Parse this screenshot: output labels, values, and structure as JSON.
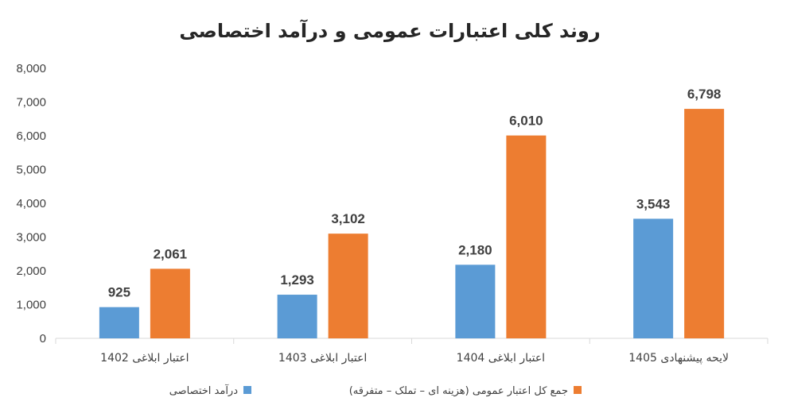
{
  "chart_data": {
    "type": "bar",
    "title": "روند کلی اعتبارات عمومی و درآمد اختصاصی",
    "categories": [
      "اعتبار ابلاغی 1402",
      "اعتبار ابلاغی 1403",
      "اعتبار ابلاغی 1404",
      "لایحه پیشنهادی 1405"
    ],
    "series": [
      {
        "name": "درآمد اختصاصی",
        "color": "#5b9bd5",
        "values": [
          925,
          1293,
          2180,
          3543
        ],
        "labels": [
          "925",
          "1,293",
          "2,180",
          "3,543"
        ]
      },
      {
        "name": "جمع کل اعتبار عمومی (هزینه ای – تملک – متفرقه)",
        "color": "#ed7d31",
        "values": [
          2061,
          3102,
          6010,
          6798
        ],
        "labels": [
          "2,061",
          "3,102",
          "6,010",
          "6,798"
        ]
      }
    ],
    "ylim": [
      0,
      8000
    ],
    "yticks": [
      0,
      1000,
      2000,
      3000,
      4000,
      5000,
      6000,
      7000,
      8000
    ],
    "ytick_labels": [
      "0",
      "1,000",
      "2,000",
      "3,000",
      "4,000",
      "5,000",
      "6,000",
      "7,000",
      "8,000"
    ],
    "grid": false,
    "legend": "bottom"
  }
}
